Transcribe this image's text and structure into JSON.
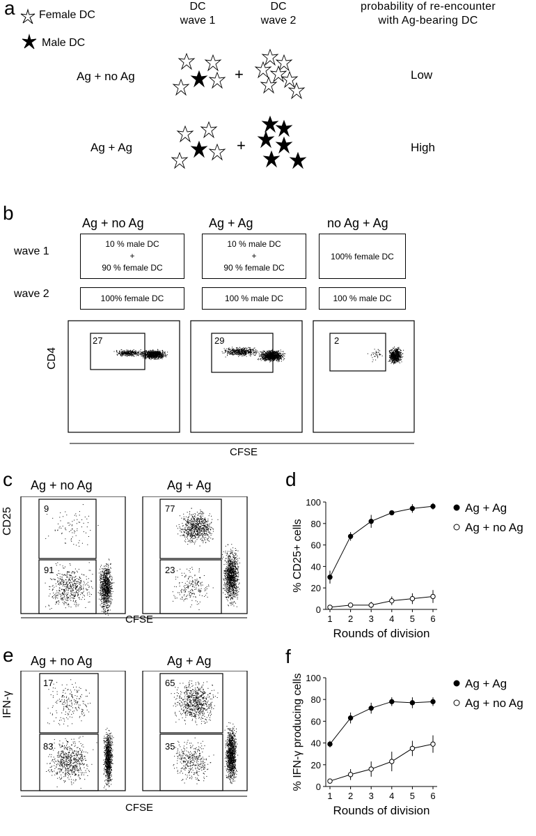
{
  "panels": {
    "a": {
      "letter": "a",
      "legend": [
        {
          "label": "Female DC",
          "icon": "female-dc-star-icon"
        },
        {
          "label": "Male DC",
          "icon": "male-dc-star-icon"
        }
      ],
      "col_wave1": "DC\nwave 1",
      "col_wave2": "DC\nwave 2",
      "col_prob": "probability of re-encounter\nwith Ag-bearing DC",
      "rows": [
        {
          "condition": "Ag + no Ag",
          "plus": "+",
          "probability": "Low"
        },
        {
          "condition": "Ag + Ag",
          "plus": "+",
          "probability": "High"
        }
      ]
    },
    "b": {
      "letter": "b",
      "row_wave1": "wave 1",
      "row_wave2": "wave 2",
      "columns": [
        {
          "title": "Ag + no Ag",
          "wave1": "10 % male DC\n+\n90 % female DC",
          "wave2": "100% female DC",
          "gate": "27"
        },
        {
          "title": "Ag + Ag",
          "wave1": "10 % male DC\n+\n90 % female DC",
          "wave2": "100 % male DC",
          "gate": "29"
        },
        {
          "title": "no Ag + Ag",
          "wave1": "100% female DC",
          "wave2": "100 % male DC",
          "gate": "2"
        }
      ],
      "ylabel": "CD4",
      "xlabel": "CFSE"
    },
    "c": {
      "letter": "c",
      "ylabel": "CD25",
      "xlabel": "CFSE",
      "plots": [
        {
          "title": "Ag + no Ag",
          "upper": "9",
          "lower": "91"
        },
        {
          "title": "Ag + Ag",
          "upper": "77",
          "lower": "23"
        }
      ]
    },
    "e": {
      "letter": "e",
      "ylabel": "IFN-γ",
      "xlabel": "CFSE",
      "plots": [
        {
          "title": "Ag + no Ag",
          "upper": "17",
          "lower": "83"
        },
        {
          "title": "Ag + Ag",
          "upper": "65",
          "lower": "35"
        }
      ]
    },
    "d": {
      "letter": "d"
    },
    "f": {
      "letter": "f"
    }
  },
  "chart_data": [
    {
      "type": "line",
      "panel": "d",
      "xlabel": "Rounds of division",
      "ylabel": "% CD25+ cells",
      "x": [
        1,
        2,
        3,
        4,
        5,
        6
      ],
      "ylim": [
        0,
        100
      ],
      "yticks": [
        0,
        20,
        40,
        60,
        80,
        100
      ],
      "series": [
        {
          "name": "Ag + Ag",
          "marker": "filled",
          "values": [
            30,
            68,
            82,
            90,
            94,
            96
          ],
          "err": [
            6,
            4,
            6,
            2,
            4,
            3
          ]
        },
        {
          "name": "Ag + no Ag",
          "marker": "open",
          "values": [
            2,
            4,
            4,
            8,
            10,
            12
          ],
          "err": [
            1,
            1,
            3,
            4,
            5,
            6
          ]
        }
      ],
      "legend": "right"
    },
    {
      "type": "line",
      "panel": "f",
      "xlabel": "Rounds of division",
      "ylabel": "% IFN-γ producing cells",
      "x": [
        1,
        2,
        3,
        4,
        5,
        6
      ],
      "ylim": [
        0,
        100
      ],
      "yticks": [
        0,
        20,
        40,
        60,
        80,
        100
      ],
      "series": [
        {
          "name": "Ag + Ag",
          "marker": "filled",
          "values": [
            39,
            63,
            72,
            78,
            77,
            78
          ],
          "err": [
            3,
            5,
            5,
            4,
            5,
            4
          ]
        },
        {
          "name": "Ag + no Ag",
          "marker": "open",
          "values": [
            5,
            11,
            16,
            23,
            35,
            39
          ],
          "err": [
            1,
            5,
            7,
            9,
            7,
            8
          ]
        }
      ],
      "legend": "right"
    }
  ]
}
